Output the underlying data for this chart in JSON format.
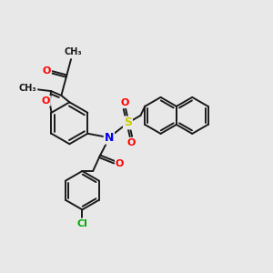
{
  "background_color": "#e8e8e8",
  "bond_color": "#1a1a1a",
  "bond_width": 1.4,
  "atom_colors": {
    "O": "#ff0000",
    "N": "#0000ee",
    "S": "#cccc00",
    "Cl": "#00aa00",
    "C": "#1a1a1a"
  },
  "font_size": 7.5,
  "figsize": [
    3.0,
    3.0
  ],
  "dpi": 100,
  "xlim": [
    0,
    10
  ],
  "ylim": [
    0,
    10
  ]
}
